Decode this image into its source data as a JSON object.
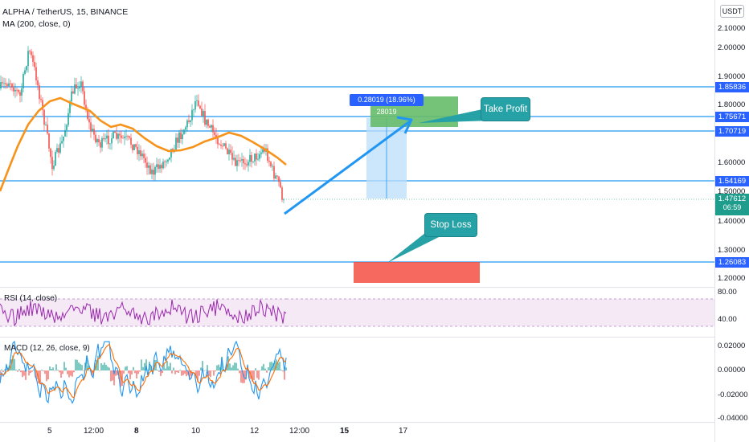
{
  "header": {
    "symbol_line": "ALPHA / TetherUS, 15, BINANCE",
    "ma_label": "MA (200, close, 0)",
    "currency": "USDT"
  },
  "price_axis": [
    "2.10000",
    "2.00000",
    "1.90000",
    "1.80000",
    "1.60000",
    "1.50000",
    "1.40000",
    "1.30000",
    "1.20000"
  ],
  "levels": [
    "1.85836",
    "1.75671",
    "1.70719",
    "1.54169",
    "1.26083"
  ],
  "current_price": {
    "value": "1.47612",
    "countdown": "06:59"
  },
  "position_box": {
    "label": "0.28019 (18.96%) 28019"
  },
  "callouts": {
    "take_profit": "Take Profit",
    "stop_loss": "Stop Loss"
  },
  "rsi": {
    "label": "RSI (14, close)",
    "axis": [
      "80.00",
      "40.00"
    ]
  },
  "macd": {
    "label": "MACD (12, 26, close, 9)",
    "axis": [
      "0.02000",
      "0.00000",
      "-0.02000",
      "-0.04000"
    ]
  },
  "time_axis": [
    "5",
    "12:00",
    "8",
    "10",
    "12",
    "12:00",
    "15",
    "17"
  ],
  "colors": {
    "up": "#26a69a",
    "down": "#ef5350",
    "ma": "#f7931a",
    "level": "#2196f3",
    "rsi_line": "#9c27b0",
    "macd": "#2196f3",
    "signal": "#ff6d00",
    "tp_box": "#66bb6a",
    "sl_box": "#f44336",
    "callout": "#26a1a6"
  }
}
